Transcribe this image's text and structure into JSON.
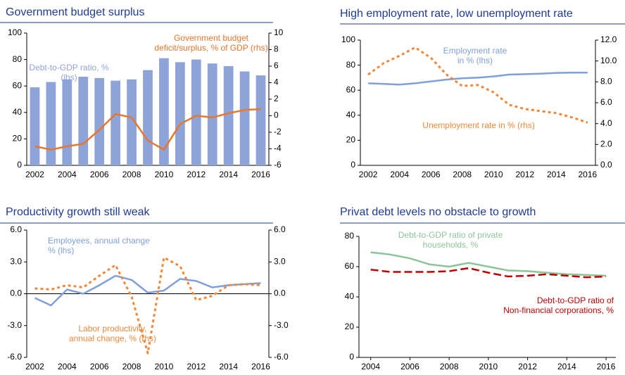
{
  "chart_data": [
    {
      "type": "bar",
      "title": "Government budget surplus",
      "categories": [
        "2002",
        null,
        "2004",
        null,
        "2006",
        null,
        "2008",
        null,
        "2010",
        null,
        "2012",
        null,
        "2014",
        null,
        "2016"
      ],
      "ylim": [
        0,
        100
      ],
      "yticks": [
        0,
        20,
        40,
        60,
        80,
        100
      ],
      "y2lim": [
        -6,
        10
      ],
      "y2ticks": [
        -6,
        -4,
        -2,
        0,
        2,
        4,
        6,
        8,
        10
      ],
      "series": [
        {
          "name": [
            "Debt-to-GDP ratio, %",
            "(lhs)"
          ],
          "type": "bar",
          "color": "#8ea4d8",
          "values": [
            59,
            63,
            65,
            67,
            66,
            64,
            65,
            72,
            81,
            78,
            80,
            77,
            75,
            71,
            68
          ]
        },
        {
          "name": [
            "Government budget",
            "deficit/surplus, % of GDP (rhs)"
          ],
          "type": "line",
          "axis": "y2",
          "style": "solid",
          "color": "#e8762b",
          "values": [
            -3.7,
            -4.1,
            -3.7,
            -3.4,
            -1.7,
            0.2,
            -0.2,
            -3.0,
            -4.1,
            -1.0,
            0.0,
            -0.2,
            0.3,
            0.7,
            0.8
          ]
        }
      ]
    },
    {
      "type": "line",
      "title": "High employment rate, low unemployment rate",
      "categories": [
        "2002",
        null,
        "2004",
        null,
        "2006",
        null,
        "2008",
        null,
        "2010",
        null,
        "2012",
        null,
        "2014",
        null,
        "2016"
      ],
      "ylim": [
        0,
        100
      ],
      "yticks": [
        0,
        20,
        40,
        60,
        80,
        100
      ],
      "y2lim": [
        0,
        12
      ],
      "y2ticks": [
        {
          "value": 0,
          "label": "0.0"
        },
        {
          "value": 2,
          "label": "2.0"
        },
        {
          "value": 4,
          "label": "4.0"
        },
        {
          "value": 6,
          "label": "6.0"
        },
        {
          "value": 8,
          "label": "8.0"
        },
        {
          "value": 10,
          "label": "10.0"
        },
        {
          "value": 12,
          "label": "12.0"
        }
      ],
      "series": [
        {
          "name": [
            "Employment rate",
            "in % (lhs)"
          ],
          "type": "line",
          "style": "solid",
          "color": "#7f9fd8",
          "values": [
            65.5,
            65,
            64.5,
            65.5,
            67,
            68.5,
            69.5,
            70,
            71,
            72.5,
            72.8,
            73.2,
            73.8,
            74,
            74
          ]
        },
        {
          "name": [
            "Unemployment rate in % (rhs)"
          ],
          "type": "line",
          "axis": "y2",
          "style": "dotted",
          "color": "#f0883a",
          "values": [
            8.7,
            9.8,
            10.5,
            11.3,
            10.3,
            8.7,
            7.6,
            7.7,
            7.0,
            5.8,
            5.4,
            5.2,
            5.0,
            4.6,
            4.1
          ]
        }
      ]
    },
    {
      "type": "line",
      "title": "Productivity growth still weak",
      "categories": [
        "2002",
        null,
        "2004",
        null,
        "2006",
        null,
        "2008",
        null,
        "2010",
        null,
        "2012",
        null,
        "2014",
        null,
        "2016"
      ],
      "ylim": [
        -6,
        6
      ],
      "yticks": [
        {
          "value": -6,
          "label": "-6.0"
        },
        {
          "value": -3,
          "label": "-3.0"
        },
        {
          "value": 0,
          "label": "0.0"
        },
        {
          "value": 3,
          "label": "3.0"
        },
        {
          "value": 6,
          "label": "6.0"
        }
      ],
      "y2lim": [
        -6,
        6
      ],
      "y2ticks": [
        {
          "value": -6,
          "label": "-6.0"
        },
        {
          "value": -3,
          "label": "-3.0"
        },
        {
          "value": 0,
          "label": "0.0"
        },
        {
          "value": 3,
          "label": "3.0"
        },
        {
          "value": 6,
          "label": "6.0"
        }
      ],
      "series": [
        {
          "name": [
            "Employees, annual change",
            "% (lhs)"
          ],
          "type": "line",
          "style": "solid",
          "color": "#7f9fd8",
          "values": [
            -0.4,
            -1.1,
            0.4,
            0.0,
            0.8,
            1.7,
            1.3,
            0.1,
            0.3,
            1.4,
            1.2,
            0.6,
            0.8,
            0.9,
            1.0
          ]
        },
        {
          "name": [
            "Labor productivity,",
            "annual change, % (rhs)"
          ],
          "type": "line",
          "axis": "y2",
          "style": "dotted",
          "color": "#f0883a",
          "values": [
            0.5,
            0.4,
            0.8,
            0.6,
            1.7,
            2.7,
            -0.3,
            -5.6,
            3.4,
            2.6,
            -0.6,
            -0.2,
            0.8,
            0.9,
            0.8
          ]
        }
      ]
    },
    {
      "type": "line",
      "title": "Privat debt levels no obstacle to growth",
      "x": [
        2004,
        2005,
        2006,
        2007,
        2008,
        2009,
        2010,
        2011,
        2012,
        2013,
        2014,
        2015,
        2016
      ],
      "xlim": [
        2003.4,
        2016.5
      ],
      "xticks": [
        2004,
        2006,
        2008,
        2010,
        2012,
        2014,
        2016
      ],
      "ylim": [
        0,
        80
      ],
      "yticks": [
        0,
        20,
        40,
        60,
        80
      ],
      "series": [
        {
          "name": [
            "Debt-to-GDP ratio of private",
            "households, %"
          ],
          "type": "line",
          "style": "solid",
          "color": "#8cc49a",
          "values": [
            69.5,
            68,
            65.5,
            61.5,
            60,
            62.5,
            60,
            57.5,
            57,
            56,
            55,
            54.5,
            54
          ]
        },
        {
          "name": [
            "Debt-to-GDP ratio of",
            "Non-financial corporations, %"
          ],
          "type": "line",
          "style": "dashed",
          "color": "#c00000",
          "values": [
            58,
            56.5,
            56.5,
            56.5,
            57,
            59,
            56,
            53.5,
            54,
            55,
            54,
            53,
            53.5
          ]
        }
      ]
    }
  ]
}
